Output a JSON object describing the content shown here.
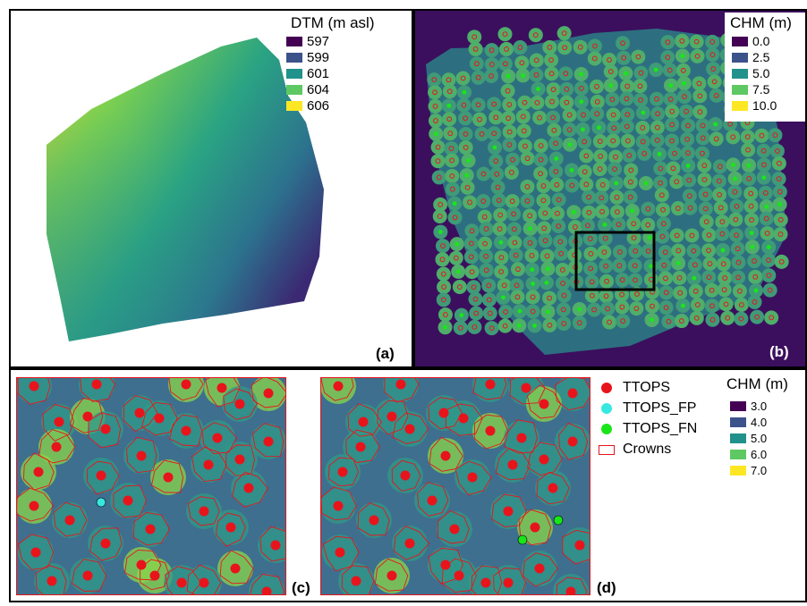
{
  "panel_a": {
    "legend_title": "DTM (m asl)",
    "legend": [
      {
        "label": "597",
        "color": "#440154"
      },
      {
        "label": "599",
        "color": "#3b528b"
      },
      {
        "label": "601",
        "color": "#21918c"
      },
      {
        "label": "604",
        "color": "#5ec962"
      },
      {
        "label": "606",
        "color": "#fde725"
      }
    ],
    "tag": "(a)"
  },
  "panel_b": {
    "legend_title": "CHM (m)",
    "legend": [
      {
        "label": "0.0",
        "color": "#440154"
      },
      {
        "label": "2.5",
        "color": "#3b528b"
      },
      {
        "label": "5.0",
        "color": "#21918c"
      },
      {
        "label": "7.5",
        "color": "#5ec962"
      },
      {
        "label": "10.0",
        "color": "#fde725"
      }
    ],
    "tag": "(b)"
  },
  "panel_c": {
    "tag": "(c)"
  },
  "panel_d": {
    "tag": "(d)"
  },
  "points_legend": [
    {
      "label": "TTOPS",
      "color": "#e8141c",
      "shape": "circle"
    },
    {
      "label": "TTOPS_FP",
      "color": "#36e8e0",
      "shape": "circle"
    },
    {
      "label": "TTOPS_FN",
      "color": "#19e619",
      "shape": "circle"
    },
    {
      "label": "Crowns",
      "color": "#e8141c",
      "shape": "rect-outline"
    }
  ],
  "chm_detail": {
    "legend_title": "CHM (m)",
    "legend": [
      {
        "label": "3.0",
        "color": "#440154"
      },
      {
        "label": "4.0",
        "color": "#3b528b"
      },
      {
        "label": "5.0",
        "color": "#21918c"
      },
      {
        "label": "6.0",
        "color": "#5ec962"
      },
      {
        "label": "7.0",
        "color": "#fde725"
      }
    ]
  }
}
